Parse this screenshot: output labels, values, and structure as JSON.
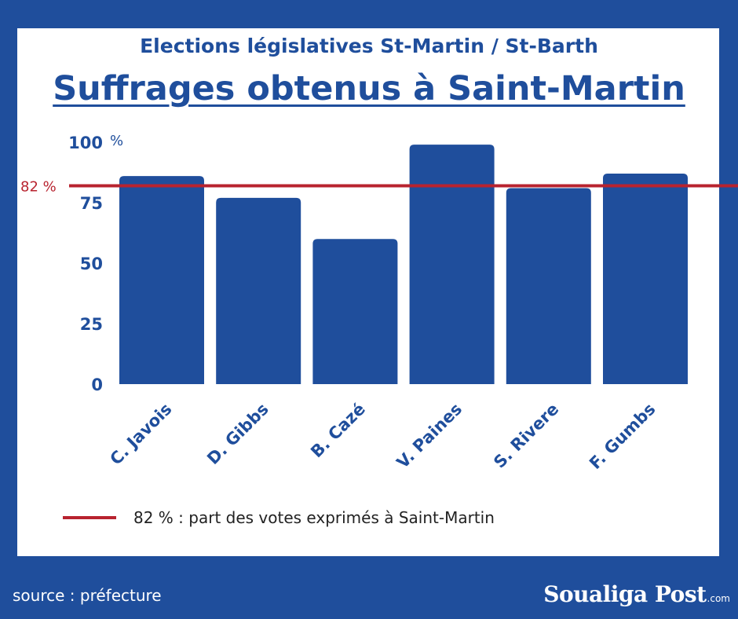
{
  "headline": "Elections législatives St-Martin / St-Barth",
  "legend": {
    "text": "82 % : part des votes exprimés à Saint-Martin",
    "color": "#b8232f"
  },
  "source": "source : préfecture",
  "logo": {
    "name": "Soualiga Post",
    "suffix": ".com"
  },
  "colors": {
    "background": "#1f4e9c",
    "bar": "#1f4e9c",
    "reference": "#b8232f"
  },
  "chart_data": {
    "type": "bar",
    "title": "Suffrages obtenus à Saint-Martin",
    "categories": [
      "C. Javois",
      "D. Gibbs",
      "B. Cazé",
      "V. Paines",
      "S. Rivere",
      "F. Gumbs"
    ],
    "values": [
      86,
      77,
      60,
      99,
      81,
      87
    ],
    "ylim": [
      0,
      100
    ],
    "yticks": [
      "0",
      "25",
      "50",
      "75",
      "100"
    ],
    "yunit": "%",
    "reference_line": {
      "value": 82,
      "label": "82 %"
    },
    "grid": false,
    "legend_position": "bottom"
  }
}
